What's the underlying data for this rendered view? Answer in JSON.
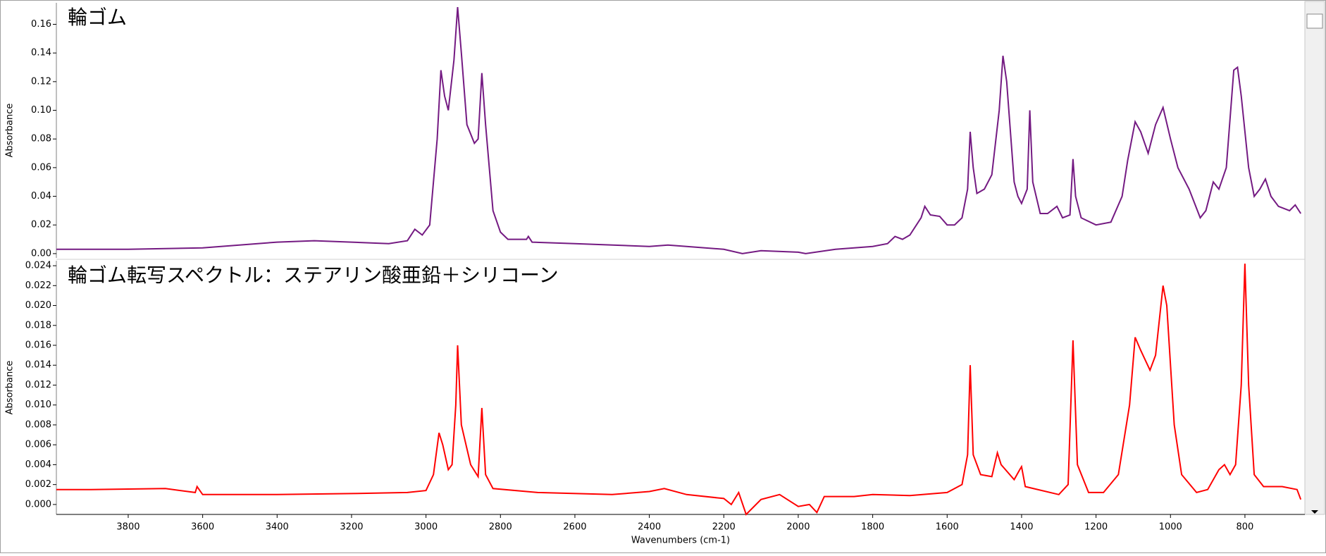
{
  "chart_data": [
    {
      "type": "line",
      "title": "輪ゴム",
      "y_label": "Absorbance",
      "color": "#741a82",
      "xlim": [
        3993,
        639
      ],
      "ylim": [
        -0.003,
        0.175
      ],
      "yticks": [
        {
          "value": 0,
          "label": "0.00"
        },
        {
          "value": 0.02,
          "label": "0.02"
        },
        {
          "value": 0.04,
          "label": "0.04"
        },
        {
          "value": 0.06,
          "label": "0.06"
        },
        {
          "value": 0.08,
          "label": "0.08"
        },
        {
          "value": 0.1,
          "label": "0.10"
        },
        {
          "value": 0.12,
          "label": "0.12"
        },
        {
          "value": 0.14,
          "label": "0.14"
        },
        {
          "value": 0.16,
          "label": "0.16"
        }
      ],
      "x": [
        3993,
        3800,
        3600,
        3400,
        3300,
        3200,
        3100,
        3050,
        3030,
        3010,
        2990,
        2970,
        2960,
        2950,
        2940,
        2925,
        2915,
        2905,
        2890,
        2870,
        2860,
        2850,
        2840,
        2820,
        2800,
        2780,
        2730,
        2725,
        2715,
        2600,
        2400,
        2350,
        2300,
        2200,
        2150,
        2100,
        2000,
        1980,
        1900,
        1800,
        1760,
        1740,
        1720,
        1700,
        1670,
        1660,
        1645,
        1620,
        1600,
        1580,
        1560,
        1545,
        1538,
        1530,
        1520,
        1500,
        1480,
        1460,
        1450,
        1440,
        1420,
        1410,
        1400,
        1385,
        1378,
        1370,
        1350,
        1330,
        1305,
        1290,
        1270,
        1262,
        1255,
        1240,
        1200,
        1160,
        1130,
        1115,
        1095,
        1080,
        1060,
        1040,
        1020,
        1000,
        980,
        950,
        920,
        905,
        885,
        870,
        850,
        830,
        820,
        810,
        790,
        775,
        760,
        745,
        730,
        710,
        680,
        665,
        650
      ],
      "values": [
        0.003,
        0.003,
        0.004,
        0.008,
        0.009,
        0.008,
        0.007,
        0.009,
        0.017,
        0.013,
        0.02,
        0.08,
        0.128,
        0.11,
        0.1,
        0.135,
        0.172,
        0.14,
        0.09,
        0.077,
        0.08,
        0.126,
        0.09,
        0.03,
        0.015,
        0.01,
        0.01,
        0.012,
        0.008,
        0.007,
        0.005,
        0.006,
        0.005,
        0.003,
        0.0,
        0.002,
        0.001,
        0.0,
        0.003,
        0.005,
        0.007,
        0.012,
        0.01,
        0.013,
        0.025,
        0.033,
        0.027,
        0.026,
        0.02,
        0.02,
        0.025,
        0.045,
        0.085,
        0.06,
        0.042,
        0.045,
        0.055,
        0.1,
        0.138,
        0.12,
        0.05,
        0.04,
        0.035,
        0.045,
        0.1,
        0.05,
        0.028,
        0.028,
        0.033,
        0.025,
        0.027,
        0.066,
        0.04,
        0.025,
        0.02,
        0.022,
        0.04,
        0.065,
        0.092,
        0.085,
        0.07,
        0.09,
        0.102,
        0.08,
        0.06,
        0.045,
        0.025,
        0.03,
        0.05,
        0.045,
        0.06,
        0.128,
        0.13,
        0.11,
        0.06,
        0.04,
        0.045,
        0.052,
        0.04,
        0.033,
        0.03,
        0.034,
        0.028
      ]
    },
    {
      "type": "line",
      "title": "輪ゴム転写スペクトル：ステアリン酸亜鉛＋シリコーン",
      "y_label": "Absorbance",
      "x_label": "Wavenumbers (cm-1)",
      "color": "#ff0000",
      "xlim": [
        3993,
        639
      ],
      "ylim": [
        -0.001,
        0.0245
      ],
      "xticks": [
        3800,
        3600,
        3400,
        3200,
        3000,
        2800,
        2600,
        2400,
        2200,
        2000,
        1800,
        1600,
        1400,
        1200,
        1000,
        800
      ],
      "yticks": [
        {
          "value": 0,
          "label": "0.000"
        },
        {
          "value": 0.002,
          "label": "0.002"
        },
        {
          "value": 0.004,
          "label": "0.004"
        },
        {
          "value": 0.006,
          "label": "0.006"
        },
        {
          "value": 0.008,
          "label": "0.008"
        },
        {
          "value": 0.01,
          "label": "0.010"
        },
        {
          "value": 0.012,
          "label": "0.012"
        },
        {
          "value": 0.014,
          "label": "0.014"
        },
        {
          "value": 0.016,
          "label": "0.016"
        },
        {
          "value": 0.018,
          "label": "0.018"
        },
        {
          "value": 0.02,
          "label": "0.020"
        },
        {
          "value": 0.022,
          "label": "0.022"
        },
        {
          "value": 0.024,
          "label": "0.024"
        }
      ],
      "x": [
        3993,
        3900,
        3700,
        3620,
        3615,
        3600,
        3400,
        3200,
        3050,
        3000,
        2980,
        2965,
        2955,
        2940,
        2930,
        2920,
        2915,
        2905,
        2880,
        2860,
        2850,
        2840,
        2820,
        2700,
        2500,
        2400,
        2360,
        2300,
        2200,
        2180,
        2160,
        2140,
        2100,
        2050,
        2000,
        1970,
        1950,
        1930,
        1850,
        1800,
        1700,
        1600,
        1560,
        1545,
        1538,
        1530,
        1510,
        1480,
        1465,
        1455,
        1420,
        1405,
        1400,
        1390,
        1300,
        1275,
        1262,
        1250,
        1220,
        1180,
        1140,
        1110,
        1095,
        1080,
        1055,
        1040,
        1020,
        1010,
        990,
        970,
        930,
        900,
        870,
        855,
        840,
        825,
        810,
        800,
        790,
        775,
        750,
        700,
        660,
        650
      ],
      "values": [
        0.0015,
        0.0015,
        0.0016,
        0.0012,
        0.0018,
        0.001,
        0.001,
        0.0011,
        0.0012,
        0.0014,
        0.003,
        0.0072,
        0.006,
        0.0035,
        0.004,
        0.01,
        0.016,
        0.008,
        0.004,
        0.0028,
        0.0097,
        0.003,
        0.0016,
        0.0012,
        0.001,
        0.0013,
        0.0016,
        0.001,
        0.0006,
        0.0,
        0.0012,
        -0.001,
        0.0005,
        0.001,
        -0.0002,
        0.0,
        -0.0008,
        0.0008,
        0.0008,
        0.001,
        0.0009,
        0.0012,
        0.002,
        0.005,
        0.014,
        0.005,
        0.003,
        0.0028,
        0.0052,
        0.004,
        0.0025,
        0.0035,
        0.0038,
        0.0018,
        0.001,
        0.002,
        0.0165,
        0.004,
        0.0012,
        0.0012,
        0.003,
        0.01,
        0.0168,
        0.0155,
        0.0135,
        0.015,
        0.022,
        0.02,
        0.008,
        0.003,
        0.0012,
        0.0015,
        0.0035,
        0.004,
        0.003,
        0.004,
        0.012,
        0.0242,
        0.012,
        0.003,
        0.0018,
        0.0018,
        0.0015,
        0.0005
      ]
    }
  ]
}
